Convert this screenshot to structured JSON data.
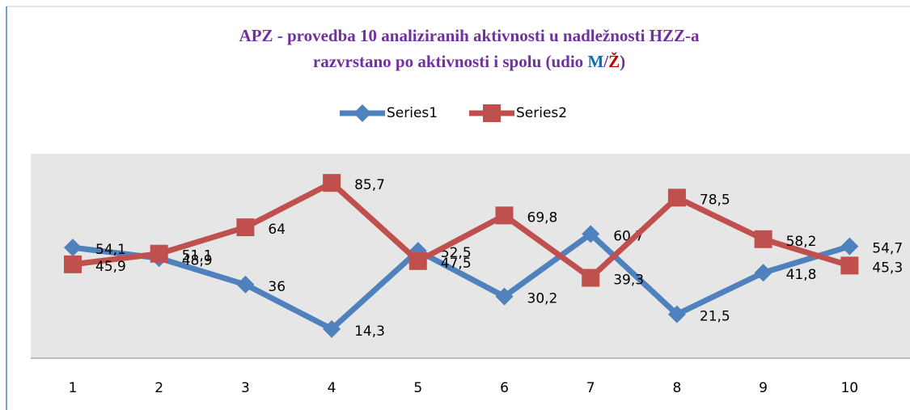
{
  "chart_data": {
    "type": "line",
    "title": [
      "APZ - provedba 10 analiziranih aktivnosti  u nadležnosti HZZ-a",
      "razvrstano po aktivnosti i spolu (udio ",
      "M",
      "/",
      "Ž",
      ")"
    ],
    "title_colors": [
      "#7030a0",
      "#7030a0",
      "#0070c0",
      "#7030a0",
      "#c00000",
      "#7030a0"
    ],
    "categories": [
      1,
      2,
      3,
      4,
      5,
      6,
      7,
      8,
      9,
      10
    ],
    "series": [
      {
        "name": "Series1",
        "color": "#4f81bd",
        "marker": "diamond",
        "values": [
          54.1,
          48.9,
          36,
          14.3,
          52.5,
          30.2,
          60.7,
          21.5,
          41.8,
          54.7
        ],
        "value_labels": [
          "54,1",
          "48,9",
          "36",
          "14,3",
          "52,5",
          "30,2",
          "60,7",
          "21,5",
          "41,8",
          "54,7"
        ]
      },
      {
        "name": "Series2",
        "color": "#c0504d",
        "marker": "square",
        "values": [
          45.9,
          51.1,
          64,
          85.7,
          47.5,
          69.8,
          39.3,
          78.5,
          58.2,
          45.3
        ],
        "value_labels": [
          "45,9",
          "51,1",
          "64",
          "85,7",
          "47,5",
          "69,8",
          "39,3",
          "78,5",
          "58,2",
          "45,3"
        ]
      }
    ],
    "ylim": [
      0,
      100
    ],
    "legend": "top",
    "plot_background": "#e6e6e6"
  }
}
